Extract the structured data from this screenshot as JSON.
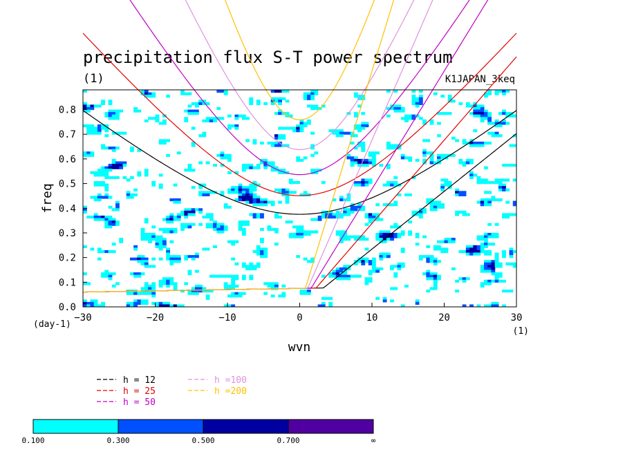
{
  "chart_data": {
    "type": "heatmap",
    "title": "precipitation flux S-T power spectrum",
    "subtitle": "(1)",
    "annotation_right": "K1JAPAN_3keq",
    "xlabel": "wvn",
    "ylabel": "freq",
    "xunit": "(1)",
    "yunit": "(day-1)",
    "xlim": [
      -30,
      30
    ],
    "ylim": [
      0.0,
      0.88
    ],
    "xticks": [
      -30,
      -20,
      -10,
      0,
      10,
      20,
      30
    ],
    "yticks": [
      0.0,
      0.1,
      0.2,
      0.3,
      0.4,
      0.5,
      0.6,
      0.7,
      0.8
    ],
    "xtick_labels": [
      "−30",
      "−20",
      "−10",
      "0",
      "10",
      "20",
      "30"
    ],
    "ytick_labels": [
      "0.0",
      "0.1",
      "0.2",
      "0.3",
      "0.4",
      "0.5",
      "0.6",
      "0.7",
      "0.8"
    ],
    "contour_levels": [
      0.1,
      0.3,
      0.5,
      0.7
    ],
    "colorbar": {
      "colors": [
        "#00ffff",
        "#0050ff",
        "#0000a0",
        "#5000a0"
      ],
      "labels": [
        "0.100",
        "0.300",
        "0.500",
        "0.700",
        "∞"
      ]
    },
    "dispersion_curves": [
      {
        "name": "h = 12",
        "color": "#000000",
        "h": 12,
        "groups": [
          "low",
          "high"
        ]
      },
      {
        "name": "h = 25",
        "color": "#e00000",
        "h": 25,
        "groups": [
          "low",
          "high"
        ]
      },
      {
        "name": "h = 50",
        "color": "#c000c0",
        "h": 50,
        "groups": [
          "low",
          "high"
        ]
      },
      {
        "name": "h =100",
        "color": "#e090e0",
        "h": 100,
        "groups": [
          "low",
          "high"
        ]
      },
      {
        "name": "h =200",
        "color": "#ffc000",
        "h": 200,
        "groups": [
          "low",
          "high"
        ]
      }
    ],
    "legend_placement": "bottom-left",
    "grid": false
  }
}
